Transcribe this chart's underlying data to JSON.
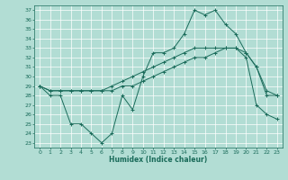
{
  "xlabel": "Humidex (Indice chaleur)",
  "xlim": [
    -0.5,
    23.5
  ],
  "ylim": [
    22.5,
    37.5
  ],
  "yticks": [
    23,
    24,
    25,
    26,
    27,
    28,
    29,
    30,
    31,
    32,
    33,
    34,
    35,
    36,
    37
  ],
  "xticks": [
    0,
    1,
    2,
    3,
    4,
    5,
    6,
    7,
    8,
    9,
    10,
    11,
    12,
    13,
    14,
    15,
    16,
    17,
    18,
    19,
    20,
    21,
    22,
    23
  ],
  "background_color": "#b2ddd4",
  "grid_color": "#c8e8e0",
  "line_color": "#1a6b5a",
  "line1_y": [
    29,
    28,
    28,
    25,
    25,
    24,
    23,
    24,
    28,
    26.5,
    30,
    32.5,
    32.5,
    33,
    34.5,
    37,
    36.5,
    37,
    35.5,
    34.5,
    32.5,
    31,
    28.5,
    28
  ],
  "line2_y": [
    29,
    28.5,
    28.5,
    28.5,
    28.5,
    28.5,
    28.5,
    29,
    29.5,
    30,
    30.5,
    31,
    31.5,
    32,
    32.5,
    33,
    33,
    33,
    33,
    33,
    32.5,
    31,
    28,
    28
  ],
  "line3_y": [
    29,
    28.5,
    28.5,
    28.5,
    28.5,
    28.5,
    28.5,
    28.5,
    29,
    29,
    29.5,
    30,
    30.5,
    31,
    31.5,
    32,
    32,
    32.5,
    33,
    33,
    32,
    27,
    26,
    25.5
  ]
}
